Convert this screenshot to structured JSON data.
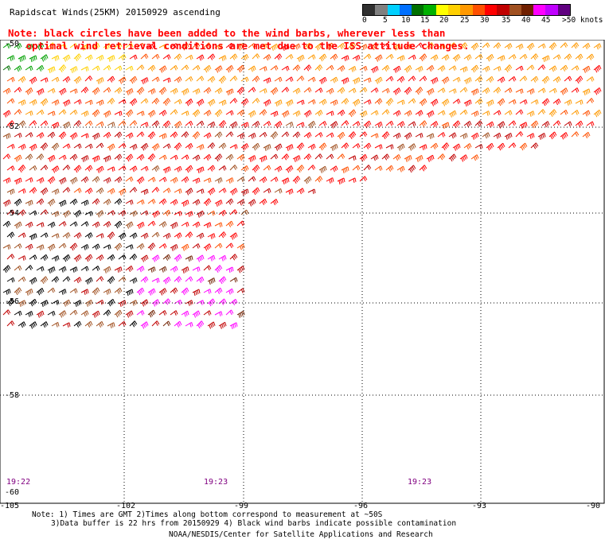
{
  "title": "Rapidscat Winds(25KM) 20150929 ascending",
  "note_line1": "Note: black circles have been added to the wind barbs, wherever less than",
  "note_line2": "   optimal wind retrieval conditions are met due to the ISS attitude changes.",
  "scale": {
    "labels": [
      "0",
      "5",
      "10",
      "15",
      "20",
      "25",
      "30",
      "35",
      "40",
      "45",
      ">50 knots"
    ],
    "colors": [
      "#303030",
      "#808080",
      "#00d0ff",
      "#0070ff",
      "#007000",
      "#00b000",
      "#ffff00",
      "#ffd000",
      "#ff9900",
      "#ff5000",
      "#ff0000",
      "#c00000",
      "#a05020",
      "#702000",
      "#ff00ff",
      "#c000ff",
      "#600080"
    ]
  },
  "lat_labels": [
    "-50",
    "-52",
    "-54",
    "-56",
    "-58",
    "-60"
  ],
  "lon_labels": [
    "-105",
    "-102",
    "-99",
    "-96",
    "-93",
    "-90"
  ],
  "time_labels": [
    "19:22",
    "19:23",
    "19:23"
  ],
  "footer": {
    "line1": "Note: 1) Times are GMT 2)Times along bottom correspond to measurement at ~50S",
    "line2": "3)Data buffer is 22 hrs from 20150929 4) Black wind barbs indicate possible contamination",
    "credit": "NOAA/NESDIS/Center for Satellite Applications and Research"
  }
}
